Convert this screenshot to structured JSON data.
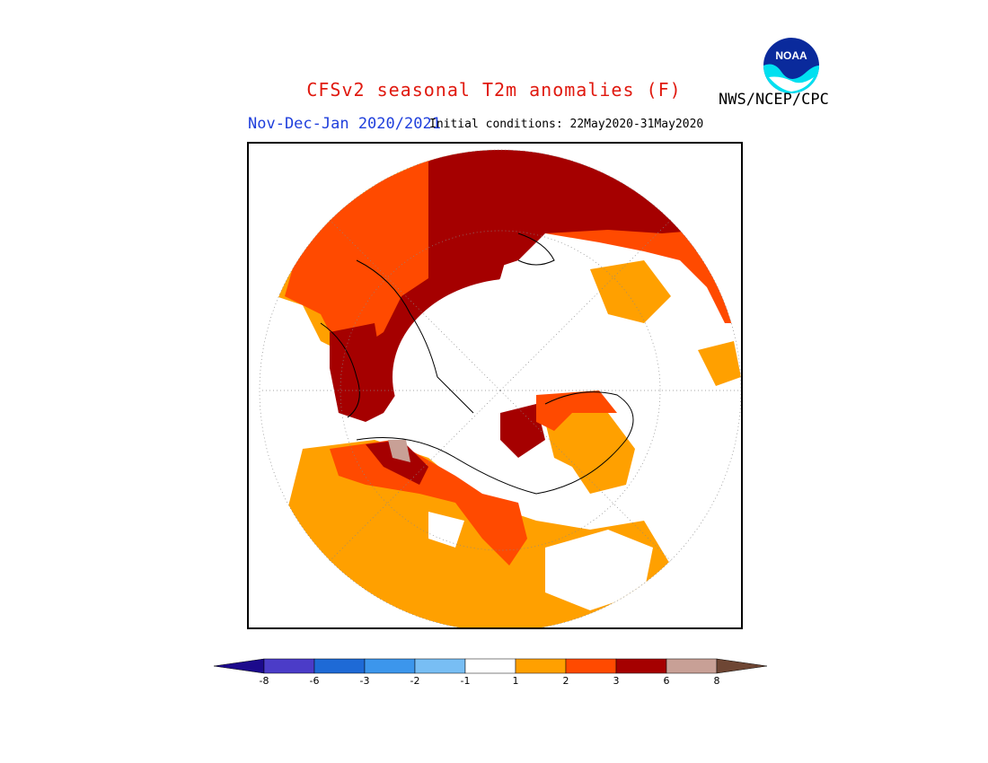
{
  "title": "CFSv2 seasonal T2m anomalies (F)",
  "period": "Nov-Dec-Jan 2020/2021",
  "initial_conditions": "Initial conditions: 22May2020-31May2020",
  "agency": "NWS/NCEP/CPC",
  "logo": {
    "text": "NOAA",
    "icon": "noaa-logo-icon"
  },
  "legend": {
    "units": "F",
    "ticks": [
      "-8",
      "-6",
      "-3",
      "-2",
      "-1",
      "1",
      "2",
      "3",
      "6",
      "8"
    ],
    "colors": [
      "#1c0a8c",
      "#4b3cc8",
      "#1e6ad6",
      "#3c96ec",
      "#78bef4",
      "#ffffff",
      "#ffa000",
      "#ff4a00",
      "#a50000",
      "#c8a096",
      "#6e4634"
    ]
  },
  "map_colors": {
    "ocean_land_neutral": "#ffffff",
    "anom_1_2": "#ffa000",
    "anom_2_3": "#ff4a00",
    "anom_3_6": "#a50000",
    "anom_6_8": "#c8a096",
    "coast": "#000000",
    "grid": "#888888"
  }
}
